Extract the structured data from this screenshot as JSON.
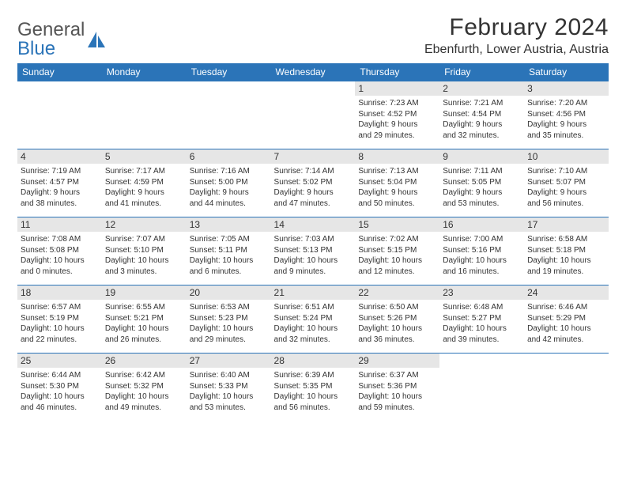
{
  "brand": {
    "part1": "General",
    "part2": "Blue"
  },
  "title": "February 2024",
  "location": "Ebenfurth, Lower Austria, Austria",
  "colors": {
    "header_bg": "#2b74b8",
    "header_text": "#ffffff",
    "daynum_bg": "#e6e6e6",
    "border": "#2b74b8",
    "page_bg": "#ffffff",
    "text": "#333333"
  },
  "weekdays": [
    "Sunday",
    "Monday",
    "Tuesday",
    "Wednesday",
    "Thursday",
    "Friday",
    "Saturday"
  ],
  "weeks": [
    [
      null,
      null,
      null,
      null,
      {
        "n": "1",
        "sr": "Sunrise: 7:23 AM",
        "ss": "Sunset: 4:52 PM",
        "dl1": "Daylight: 9 hours",
        "dl2": "and 29 minutes."
      },
      {
        "n": "2",
        "sr": "Sunrise: 7:21 AM",
        "ss": "Sunset: 4:54 PM",
        "dl1": "Daylight: 9 hours",
        "dl2": "and 32 minutes."
      },
      {
        "n": "3",
        "sr": "Sunrise: 7:20 AM",
        "ss": "Sunset: 4:56 PM",
        "dl1": "Daylight: 9 hours",
        "dl2": "and 35 minutes."
      }
    ],
    [
      {
        "n": "4",
        "sr": "Sunrise: 7:19 AM",
        "ss": "Sunset: 4:57 PM",
        "dl1": "Daylight: 9 hours",
        "dl2": "and 38 minutes."
      },
      {
        "n": "5",
        "sr": "Sunrise: 7:17 AM",
        "ss": "Sunset: 4:59 PM",
        "dl1": "Daylight: 9 hours",
        "dl2": "and 41 minutes."
      },
      {
        "n": "6",
        "sr": "Sunrise: 7:16 AM",
        "ss": "Sunset: 5:00 PM",
        "dl1": "Daylight: 9 hours",
        "dl2": "and 44 minutes."
      },
      {
        "n": "7",
        "sr": "Sunrise: 7:14 AM",
        "ss": "Sunset: 5:02 PM",
        "dl1": "Daylight: 9 hours",
        "dl2": "and 47 minutes."
      },
      {
        "n": "8",
        "sr": "Sunrise: 7:13 AM",
        "ss": "Sunset: 5:04 PM",
        "dl1": "Daylight: 9 hours",
        "dl2": "and 50 minutes."
      },
      {
        "n": "9",
        "sr": "Sunrise: 7:11 AM",
        "ss": "Sunset: 5:05 PM",
        "dl1": "Daylight: 9 hours",
        "dl2": "and 53 minutes."
      },
      {
        "n": "10",
        "sr": "Sunrise: 7:10 AM",
        "ss": "Sunset: 5:07 PM",
        "dl1": "Daylight: 9 hours",
        "dl2": "and 56 minutes."
      }
    ],
    [
      {
        "n": "11",
        "sr": "Sunrise: 7:08 AM",
        "ss": "Sunset: 5:08 PM",
        "dl1": "Daylight: 10 hours",
        "dl2": "and 0 minutes."
      },
      {
        "n": "12",
        "sr": "Sunrise: 7:07 AM",
        "ss": "Sunset: 5:10 PM",
        "dl1": "Daylight: 10 hours",
        "dl2": "and 3 minutes."
      },
      {
        "n": "13",
        "sr": "Sunrise: 7:05 AM",
        "ss": "Sunset: 5:11 PM",
        "dl1": "Daylight: 10 hours",
        "dl2": "and 6 minutes."
      },
      {
        "n": "14",
        "sr": "Sunrise: 7:03 AM",
        "ss": "Sunset: 5:13 PM",
        "dl1": "Daylight: 10 hours",
        "dl2": "and 9 minutes."
      },
      {
        "n": "15",
        "sr": "Sunrise: 7:02 AM",
        "ss": "Sunset: 5:15 PM",
        "dl1": "Daylight: 10 hours",
        "dl2": "and 12 minutes."
      },
      {
        "n": "16",
        "sr": "Sunrise: 7:00 AM",
        "ss": "Sunset: 5:16 PM",
        "dl1": "Daylight: 10 hours",
        "dl2": "and 16 minutes."
      },
      {
        "n": "17",
        "sr": "Sunrise: 6:58 AM",
        "ss": "Sunset: 5:18 PM",
        "dl1": "Daylight: 10 hours",
        "dl2": "and 19 minutes."
      }
    ],
    [
      {
        "n": "18",
        "sr": "Sunrise: 6:57 AM",
        "ss": "Sunset: 5:19 PM",
        "dl1": "Daylight: 10 hours",
        "dl2": "and 22 minutes."
      },
      {
        "n": "19",
        "sr": "Sunrise: 6:55 AM",
        "ss": "Sunset: 5:21 PM",
        "dl1": "Daylight: 10 hours",
        "dl2": "and 26 minutes."
      },
      {
        "n": "20",
        "sr": "Sunrise: 6:53 AM",
        "ss": "Sunset: 5:23 PM",
        "dl1": "Daylight: 10 hours",
        "dl2": "and 29 minutes."
      },
      {
        "n": "21",
        "sr": "Sunrise: 6:51 AM",
        "ss": "Sunset: 5:24 PM",
        "dl1": "Daylight: 10 hours",
        "dl2": "and 32 minutes."
      },
      {
        "n": "22",
        "sr": "Sunrise: 6:50 AM",
        "ss": "Sunset: 5:26 PM",
        "dl1": "Daylight: 10 hours",
        "dl2": "and 36 minutes."
      },
      {
        "n": "23",
        "sr": "Sunrise: 6:48 AM",
        "ss": "Sunset: 5:27 PM",
        "dl1": "Daylight: 10 hours",
        "dl2": "and 39 minutes."
      },
      {
        "n": "24",
        "sr": "Sunrise: 6:46 AM",
        "ss": "Sunset: 5:29 PM",
        "dl1": "Daylight: 10 hours",
        "dl2": "and 42 minutes."
      }
    ],
    [
      {
        "n": "25",
        "sr": "Sunrise: 6:44 AM",
        "ss": "Sunset: 5:30 PM",
        "dl1": "Daylight: 10 hours",
        "dl2": "and 46 minutes."
      },
      {
        "n": "26",
        "sr": "Sunrise: 6:42 AM",
        "ss": "Sunset: 5:32 PM",
        "dl1": "Daylight: 10 hours",
        "dl2": "and 49 minutes."
      },
      {
        "n": "27",
        "sr": "Sunrise: 6:40 AM",
        "ss": "Sunset: 5:33 PM",
        "dl1": "Daylight: 10 hours",
        "dl2": "and 53 minutes."
      },
      {
        "n": "28",
        "sr": "Sunrise: 6:39 AM",
        "ss": "Sunset: 5:35 PM",
        "dl1": "Daylight: 10 hours",
        "dl2": "and 56 minutes."
      },
      {
        "n": "29",
        "sr": "Sunrise: 6:37 AM",
        "ss": "Sunset: 5:36 PM",
        "dl1": "Daylight: 10 hours",
        "dl2": "and 59 minutes."
      },
      null,
      null
    ]
  ]
}
